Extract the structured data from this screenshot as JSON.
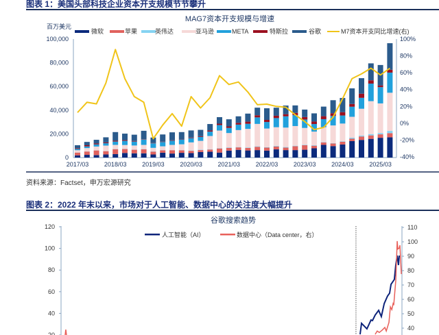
{
  "figure1": {
    "heading": "图表 1：美国头部科技企业资本开支规模节节攀升",
    "source": "资料来源：Factset，申万宏源研究"
  },
  "figure2": {
    "heading": "图表 2：2022 年末以来，市场对于人工智能、数据中心的关注度大幅提升"
  },
  "chart_data": [
    {
      "type": "bar",
      "stacked": true,
      "title": "MAG7资本开支规模与增速",
      "ylabel": "百万美元",
      "ylim": [
        0,
        100000
      ],
      "y2lim": [
        -40,
        100
      ],
      "yticks": [
        "0",
        "20,000",
        "40,000",
        "60,000",
        "80,000",
        "100,000"
      ],
      "y2ticks": [
        "-40%",
        "-20%",
        "0%",
        "20%",
        "40%",
        "60%",
        "80%",
        "100%"
      ],
      "xticks": [
        "2017/03",
        "2018/03",
        "2019/03",
        "2020/03",
        "2021/03",
        "2022/03",
        "2023/03",
        "2024/03",
        "2025/03"
      ],
      "legend_placement": "top",
      "grid": false,
      "categories": [
        "2017/03",
        "2017/06",
        "2017/09",
        "2017/12",
        "2018/03",
        "2018/06",
        "2018/09",
        "2018/12",
        "2019/03",
        "2019/06",
        "2019/09",
        "2019/12",
        "2020/03",
        "2020/06",
        "2020/09",
        "2020/12",
        "2021/03",
        "2021/06",
        "2021/09",
        "2021/12",
        "2022/03",
        "2022/06",
        "2022/09",
        "2022/12",
        "2023/03",
        "2023/06",
        "2023/09",
        "2023/12",
        "2024/03",
        "2024/06",
        "2024/09",
        "2024/12",
        "2025/03",
        "2025/06"
      ],
      "series": [
        {
          "name": "微软",
          "color": "#0b2a7c",
          "values": [
            1900,
            2300,
            2100,
            2600,
            2900,
            3900,
            3600,
            3600,
            2600,
            4100,
            3400,
            4000,
            3800,
            4700,
            4900,
            4200,
            5900,
            6500,
            6000,
            6300,
            5900,
            6900,
            6300,
            6300,
            6600,
            7800,
            10700,
            9700,
            11000,
            13900,
            14900,
            15800,
            16700,
            17100
          ]
        },
        {
          "name": "苹果",
          "color": "#e0625e",
          "values": [
            2300,
            2800,
            3900,
            2800,
            4200,
            3300,
            3000,
            3400,
            2400,
            2000,
            2800,
            2100,
            1900,
            1600,
            1900,
            3500,
            2300,
            2100,
            2100,
            2800,
            2500,
            2500,
            2100,
            3300,
            3800,
            2200,
            2100,
            2200,
            2400,
            2000,
            2900,
            2900,
            2900,
            3500
          ]
        },
        {
          "name": "英伟达",
          "color": "#86d3f2",
          "values": [
            100,
            100,
            100,
            100,
            200,
            200,
            200,
            200,
            200,
            200,
            100,
            200,
            300,
            300,
            300,
            300,
            400,
            300,
            400,
            400,
            400,
            500,
            500,
            400,
            400,
            400,
            300,
            300,
            400,
            900,
            800,
            1100,
            1100,
            1900
          ]
        },
        {
          "name": "亚马逊",
          "color": "#f6d9d8",
          "values": [
            1900,
            2800,
            3200,
            4600,
            3400,
            3200,
            3400,
            3500,
            3000,
            3200,
            4400,
            4900,
            6800,
            7500,
            11100,
            14800,
            12100,
            14300,
            15700,
            18900,
            15700,
            15700,
            16400,
            16600,
            14200,
            11500,
            12500,
            14900,
            14900,
            17600,
            22600,
            27800,
            25000,
            32200
          ]
        },
        {
          "name": "META",
          "color": "#22a1dc",
          "values": [
            1100,
            1400,
            1800,
            2000,
            2800,
            3500,
            3300,
            4500,
            3800,
            3600,
            3500,
            4100,
            3600,
            3300,
            3700,
            4600,
            4300,
            4600,
            4300,
            5500,
            5500,
            7700,
            9500,
            9200,
            7100,
            6400,
            6800,
            8000,
            6800,
            8500,
            9200,
            14800,
            13700,
            17000
          ]
        },
        {
          "name": "特斯拉",
          "color": "#9b1020",
          "values": [
            600,
            1000,
            800,
            700,
            700,
            600,
            500,
            300,
            300,
            300,
            400,
            300,
            500,
            600,
            1000,
            1200,
            1300,
            1500,
            1800,
            1800,
            1800,
            2000,
            1800,
            1900,
            2100,
            2100,
            2500,
            2300,
            2800,
            2300,
            3500,
            2800,
            1500,
            2400
          ]
        },
        {
          "name": "谷歌",
          "color": "#2b5b8c",
          "values": [
            2500,
            2800,
            3100,
            4300,
            7300,
            5500,
            5300,
            7100,
            4600,
            6100,
            6700,
            5900,
            6000,
            5400,
            5400,
            5500,
            6000,
            5500,
            6800,
            6400,
            9800,
            6800,
            7300,
            6300,
            6300,
            6900,
            8100,
            11000,
            12000,
            13200,
            13100,
            14300,
            17200,
            22400
          ]
        }
      ],
      "line": {
        "name": "M7资本开支同比增速(右)",
        "color": "#f0c419",
        "axis": "right",
        "unit": "%",
        "values": [
          12.7,
          24.9,
          23,
          47.8,
          87.6,
          53,
          31.6,
          24.9,
          -18.4,
          -2.2,
          11.4,
          -3.5,
          31.6,
          18.1,
          30.3,
          56.5,
          46,
          49,
          37,
          22,
          22.7,
          20,
          19,
          10,
          2,
          -7.6,
          -5,
          7.3,
          29,
          53,
          58.6,
          65.4,
          57.3,
          65.4
        ]
      }
    },
    {
      "type": "line",
      "title": "谷歌搜索趋势",
      "ylim": [
        0,
        120
      ],
      "y2lim": [
        0,
        110
      ],
      "yticks": [
        "20",
        "40",
        "60",
        "80",
        "100",
        "120"
      ],
      "y2ticks": [
        "40",
        "50",
        "60",
        "70",
        "80",
        "90",
        "100",
        "110"
      ],
      "legend_placement": "top",
      "grid": false,
      "xlim": [
        2004.0,
        2025.5
      ],
      "vline_x": 2022.6,
      "series": [
        {
          "name": "人工智能（AI）",
          "color": "#0d237a",
          "axis": "left",
          "x": [
            2022.86,
            2022.95,
            2023.29,
            2023.55,
            2023.64,
            2023.81,
            2024.03,
            2024.2,
            2024.38,
            2024.59,
            2024.72,
            2024.81,
            2025.02,
            2025.11,
            2025.2,
            2025.28,
            2025.33
          ],
          "y": [
            20.6,
            30.8,
            25.7,
            33.9,
            33.3,
            38.4,
            42.8,
            37,
            49,
            56,
            58.6,
            66.8,
            71.3,
            84.6,
            93.4,
            84.6,
            93.4
          ]
        },
        {
          "name": "数据中心（Data center，右）",
          "color": "#e8605a",
          "axis": "right",
          "x": [
            2004.2,
            2004.3,
            2004.4,
            2023.81,
            2023.94,
            2024.07,
            2024.25,
            2024.42,
            2024.51,
            2024.68,
            2024.77,
            2024.86,
            2024.94,
            2024.98,
            2025.11,
            2025.2,
            2025.24,
            2025.33,
            2025.37,
            2025.46
          ],
          "y": [
            30,
            39,
            30,
            35.7,
            38,
            37,
            38.6,
            40.5,
            38,
            44,
            54.8,
            52.9,
            57,
            56,
            73,
            100.5,
            95,
            95.7,
            97.6,
            77.6
          ]
        }
      ]
    }
  ]
}
